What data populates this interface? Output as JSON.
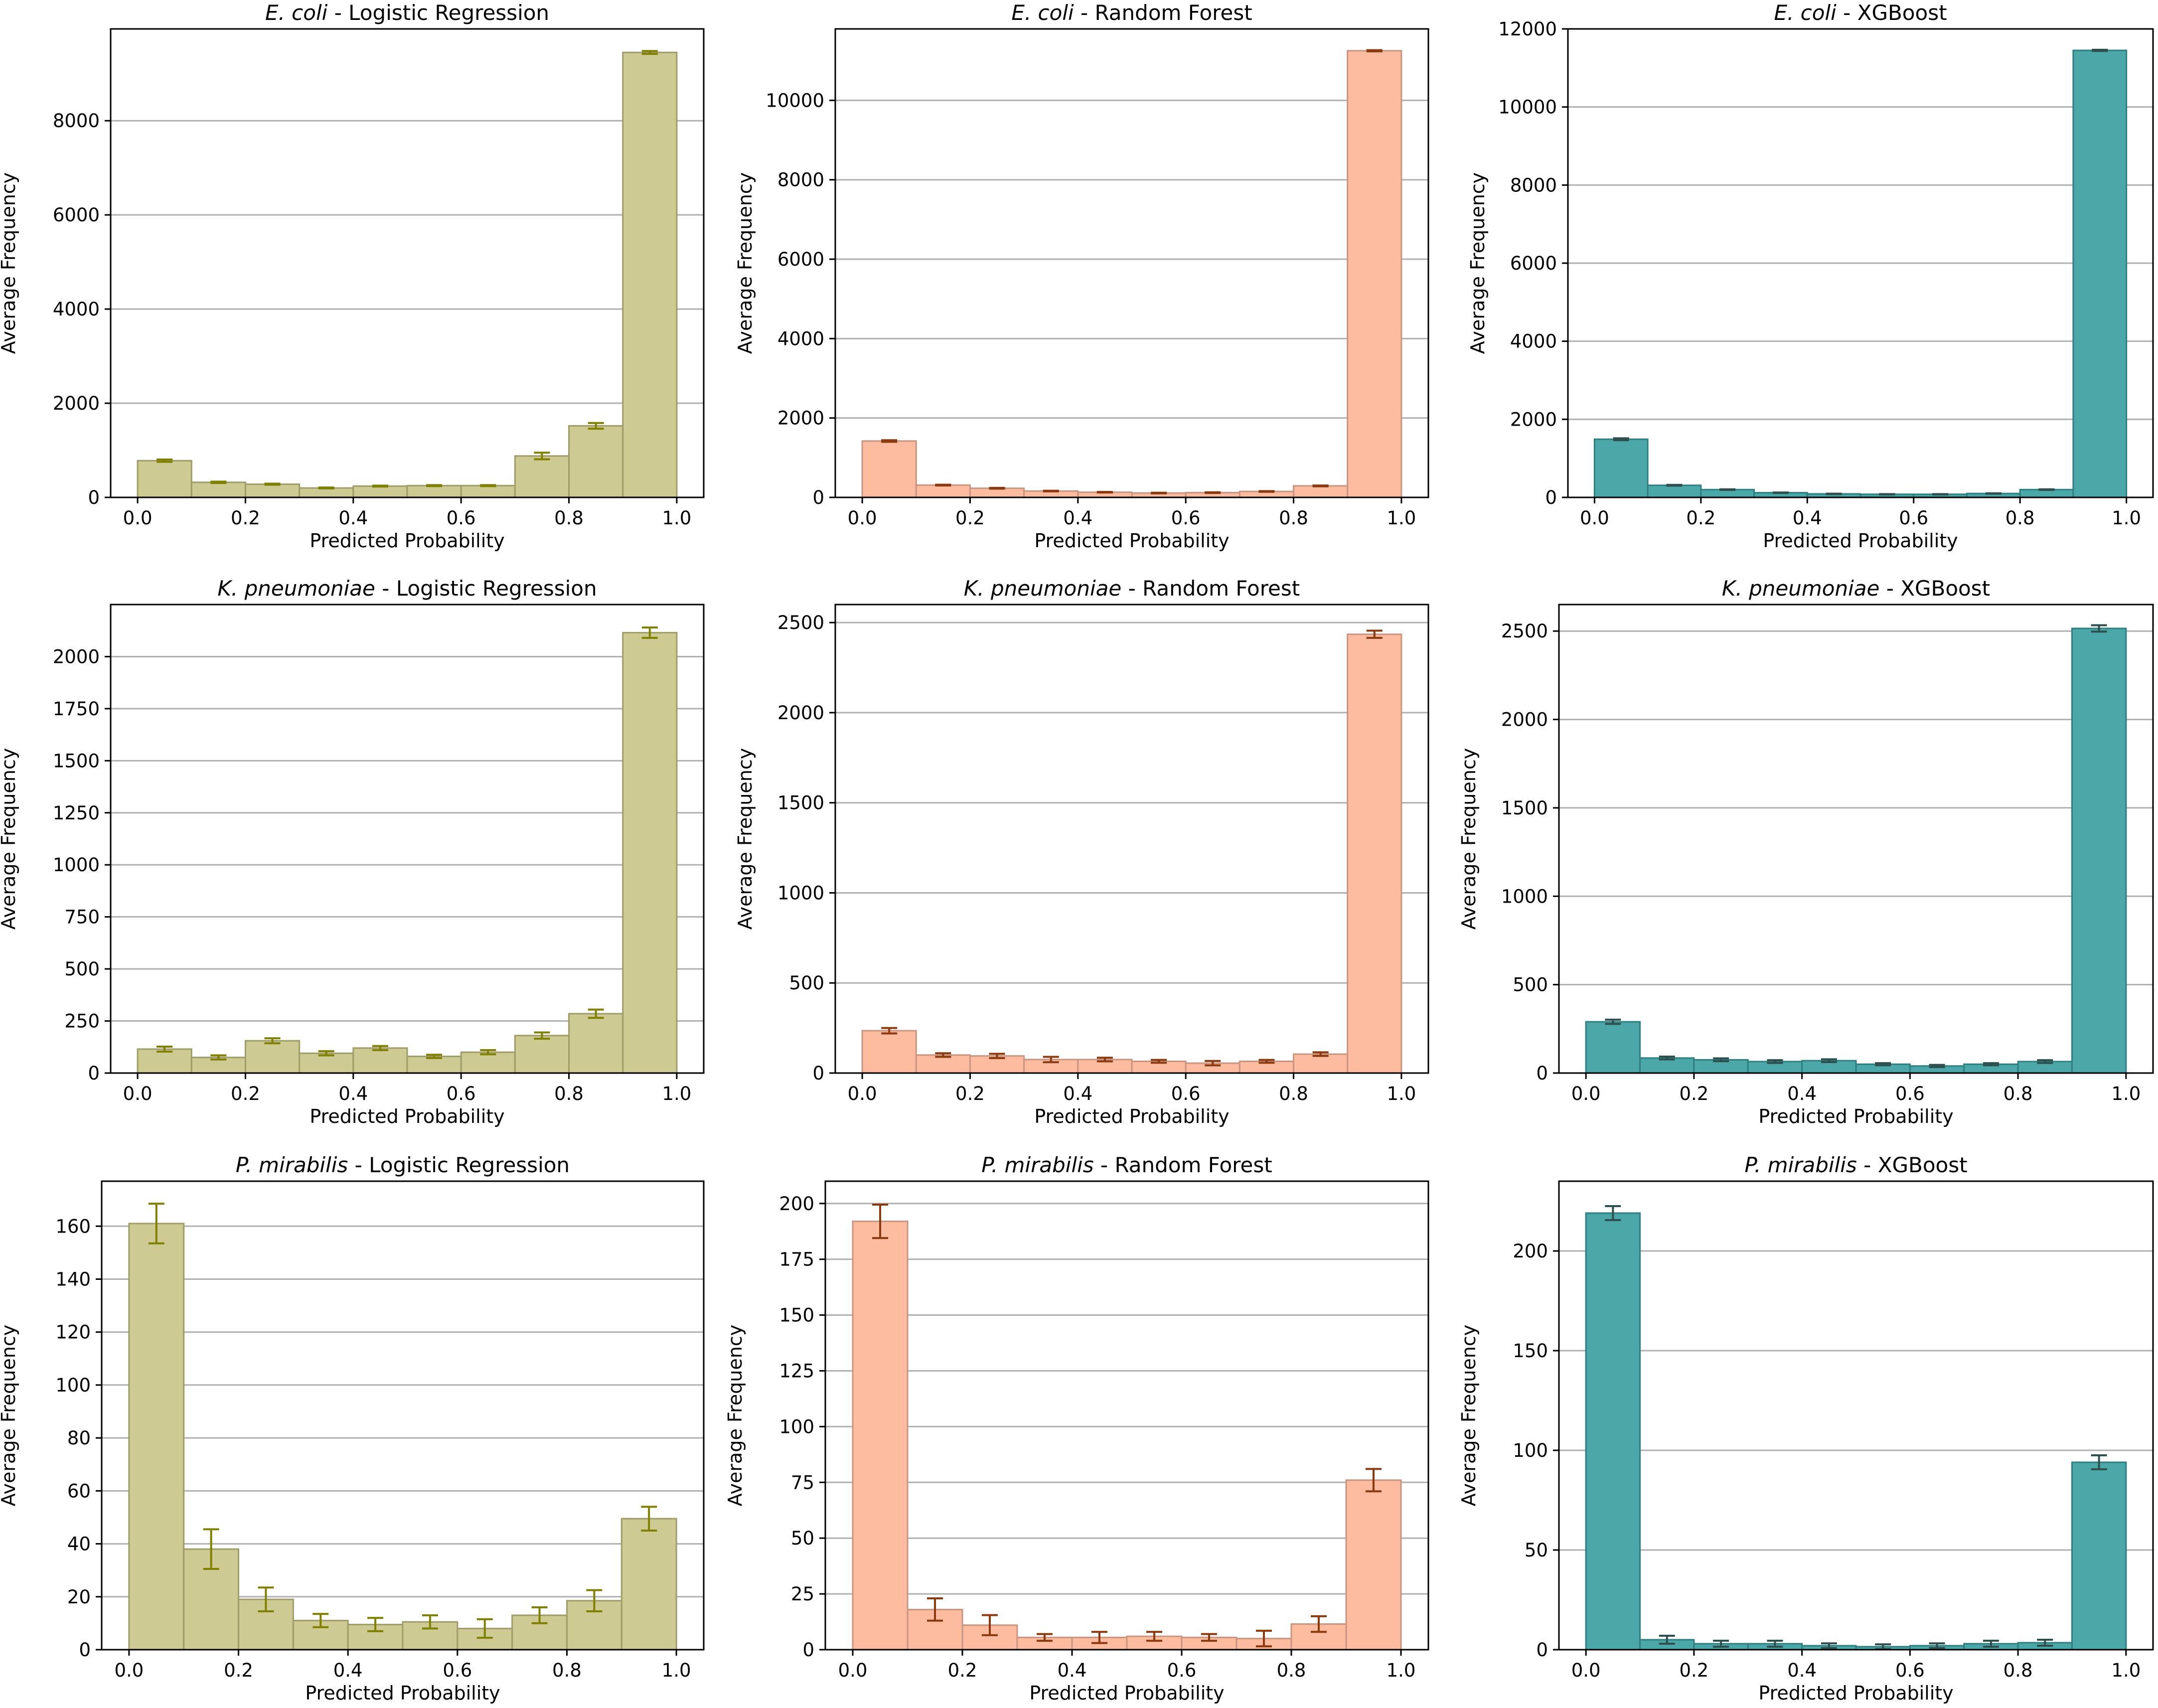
{
  "chart_data": [
    {
      "type": "bar",
      "title_organism": "E. coli",
      "title_model": "Logistic Regression",
      "title_sep": " - ",
      "xlabel": "Predicted Probability",
      "ylabel": "Average Frequency",
      "xlim": [
        -0.05,
        1.05
      ],
      "ylim": [
        0,
        9950
      ],
      "yticks": [
        0,
        2000,
        4000,
        6000,
        8000
      ],
      "xticks": [
        0.0,
        0.2,
        0.4,
        0.6,
        0.8,
        1.0
      ],
      "grid": "y",
      "bar_color": "#cdca93",
      "bar_edge": "#9f9c6a",
      "err_color": "#808000",
      "bin_edges": [
        0.0,
        0.1,
        0.2,
        0.3,
        0.4,
        0.5,
        0.6,
        0.7,
        0.8,
        0.9,
        1.0
      ],
      "values": [
        780,
        320,
        280,
        200,
        240,
        250,
        250,
        880,
        1520,
        9450
      ],
      "errors": [
        25,
        15,
        12,
        10,
        10,
        10,
        10,
        70,
        60,
        30
      ]
    },
    {
      "type": "bar",
      "title_organism": "E. coli",
      "title_model": "Random Forest",
      "title_sep": " - ",
      "xlabel": "Predicted Probability",
      "ylabel": "Average Frequency",
      "xlim": [
        -0.05,
        1.05
      ],
      "ylim": [
        0,
        11800
      ],
      "yticks": [
        0,
        2000,
        4000,
        6000,
        8000,
        10000
      ],
      "xticks": [
        0.0,
        0.2,
        0.4,
        0.6,
        0.8,
        1.0
      ],
      "grid": "y",
      "bar_color": "#fdbba0",
      "bar_edge": "#c99580",
      "err_color": "#8b3a10",
      "bin_edges": [
        0.0,
        0.1,
        0.2,
        0.3,
        0.4,
        0.5,
        0.6,
        0.7,
        0.8,
        0.9,
        1.0
      ],
      "values": [
        1420,
        310,
        230,
        160,
        130,
        110,
        120,
        150,
        290,
        11250
      ],
      "errors": [
        20,
        10,
        10,
        8,
        8,
        8,
        8,
        8,
        10,
        15
      ]
    },
    {
      "type": "bar",
      "title_organism": "E. coli",
      "title_model": "XGBoost",
      "title_sep": " - ",
      "xlabel": "Predicted Probability",
      "ylabel": "Average Frequency",
      "xlim": [
        -0.05,
        1.05
      ],
      "ylim": [
        0,
        12000
      ],
      "yticks": [
        0,
        2000,
        4000,
        6000,
        8000,
        10000,
        12000
      ],
      "xticks": [
        0.0,
        0.2,
        0.4,
        0.6,
        0.8,
        1.0
      ],
      "grid": "y",
      "bar_color": "#4ca7a8",
      "bar_edge": "#2f7f80",
      "err_color": "#2f4f4f",
      "bin_edges": [
        0.0,
        0.1,
        0.2,
        0.3,
        0.4,
        0.5,
        0.6,
        0.7,
        0.8,
        0.9,
        1.0
      ],
      "values": [
        1490,
        310,
        200,
        120,
        90,
        80,
        80,
        100,
        200,
        11450
      ],
      "errors": [
        25,
        10,
        8,
        6,
        5,
        5,
        5,
        6,
        8,
        15
      ]
    },
    {
      "type": "bar",
      "title_organism": "K. pneumoniae",
      "title_model": "Logistic Regression",
      "title_sep": " - ",
      "xlabel": "Predicted Probability",
      "ylabel": "Average Frequency",
      "xlim": [
        -0.05,
        1.05
      ],
      "ylim": [
        0,
        2250
      ],
      "yticks": [
        0,
        250,
        500,
        750,
        1000,
        1250,
        1500,
        1750,
        2000
      ],
      "xticks": [
        0.0,
        0.2,
        0.4,
        0.6,
        0.8,
        1.0
      ],
      "grid": "y",
      "bar_color": "#cdca93",
      "bar_edge": "#9f9c6a",
      "err_color": "#808000",
      "bin_edges": [
        0.0,
        0.1,
        0.2,
        0.3,
        0.4,
        0.5,
        0.6,
        0.7,
        0.8,
        0.9,
        1.0
      ],
      "values": [
        115,
        75,
        155,
        95,
        120,
        80,
        100,
        180,
        285,
        2115
      ],
      "errors": [
        12,
        10,
        12,
        10,
        10,
        8,
        10,
        15,
        20,
        25
      ]
    },
    {
      "type": "bar",
      "title_organism": "K. pneumoniae",
      "title_model": "Random Forest",
      "title_sep": " - ",
      "xlabel": "Predicted Probability",
      "ylabel": "Average Frequency",
      "xlim": [
        -0.05,
        1.05
      ],
      "ylim": [
        0,
        2600
      ],
      "yticks": [
        0,
        500,
        1000,
        1500,
        2000,
        2500
      ],
      "xticks": [
        0.0,
        0.2,
        0.4,
        0.6,
        0.8,
        1.0
      ],
      "grid": "y",
      "bar_color": "#fdbba0",
      "bar_edge": "#c99580",
      "err_color": "#8b3a10",
      "bin_edges": [
        0.0,
        0.1,
        0.2,
        0.3,
        0.4,
        0.5,
        0.6,
        0.7,
        0.8,
        0.9,
        1.0
      ],
      "values": [
        235,
        100,
        95,
        75,
        75,
        65,
        55,
        65,
        105,
        2435
      ],
      "errors": [
        15,
        10,
        12,
        15,
        10,
        8,
        12,
        8,
        10,
        20
      ]
    },
    {
      "type": "bar",
      "title_organism": "K. pneumoniae",
      "title_model": "XGBoost",
      "title_sep": " - ",
      "xlabel": "Predicted Probability",
      "ylabel": "Average Frequency",
      "xlim": [
        -0.05,
        1.05
      ],
      "ylim": [
        0,
        2650
      ],
      "yticks": [
        0,
        500,
        1000,
        1500,
        2000,
        2500
      ],
      "xticks": [
        0.0,
        0.2,
        0.4,
        0.6,
        0.8,
        1.0
      ],
      "grid": "y",
      "bar_color": "#4ca7a8",
      "bar_edge": "#2f7f80",
      "err_color": "#2f4f4f",
      "bin_edges": [
        0.0,
        0.1,
        0.2,
        0.3,
        0.4,
        0.5,
        0.6,
        0.7,
        0.8,
        0.9,
        1.0
      ],
      "values": [
        290,
        85,
        75,
        65,
        70,
        50,
        40,
        50,
        65,
        2515
      ],
      "errors": [
        12,
        8,
        8,
        8,
        8,
        6,
        6,
        6,
        8,
        18
      ]
    },
    {
      "type": "bar",
      "title_organism": "P. mirabilis",
      "title_model": "Logistic Regression",
      "title_sep": " - ",
      "xlabel": "Predicted Probability",
      "ylabel": "Average Frequency",
      "xlim": [
        -0.05,
        1.05
      ],
      "ylim": [
        0,
        177
      ],
      "yticks": [
        0,
        20,
        40,
        60,
        80,
        100,
        120,
        140,
        160
      ],
      "xticks": [
        0.0,
        0.2,
        0.4,
        0.6,
        0.8,
        1.0
      ],
      "grid": "y",
      "bar_color": "#cdca93",
      "bar_edge": "#9f9c6a",
      "err_color": "#808000",
      "bin_edges": [
        0.0,
        0.1,
        0.2,
        0.3,
        0.4,
        0.5,
        0.6,
        0.7,
        0.8,
        0.9,
        1.0
      ],
      "values": [
        161,
        38,
        19,
        11,
        9.5,
        10.5,
        8,
        13,
        18.5,
        49.5
      ],
      "errors": [
        7.5,
        7.5,
        4.5,
        2.5,
        2.5,
        2.5,
        3.5,
        3,
        4,
        4.5
      ]
    },
    {
      "type": "bar",
      "title_organism": "P. mirabilis",
      "title_model": "Random Forest",
      "title_sep": " - ",
      "xlabel": "Predicted Probability",
      "ylabel": "Average Frequency",
      "xlim": [
        -0.05,
        1.05
      ],
      "ylim": [
        0,
        210
      ],
      "yticks": [
        0,
        25,
        50,
        75,
        100,
        125,
        150,
        175,
        200
      ],
      "xticks": [
        0.0,
        0.2,
        0.4,
        0.6,
        0.8,
        1.0
      ],
      "grid": "y",
      "bar_color": "#fdbba0",
      "bar_edge": "#c99580",
      "err_color": "#8b3a10",
      "bin_edges": [
        0.0,
        0.1,
        0.2,
        0.3,
        0.4,
        0.5,
        0.6,
        0.7,
        0.8,
        0.9,
        1.0
      ],
      "values": [
        192,
        18,
        11,
        5.5,
        5.5,
        6,
        5.5,
        5,
        11.5,
        76
      ],
      "errors": [
        7.5,
        5,
        4.5,
        1.5,
        2.5,
        2,
        1.5,
        3.5,
        3.5,
        5
      ]
    },
    {
      "type": "bar",
      "title_organism": "P. mirabilis",
      "title_model": "XGBoost",
      "title_sep": " - ",
      "xlabel": "Predicted Probability",
      "ylabel": "Average Frequency",
      "xlim": [
        -0.05,
        1.05
      ],
      "ylim": [
        0,
        235
      ],
      "yticks": [
        0,
        50,
        100,
        150,
        200
      ],
      "xticks": [
        0.0,
        0.2,
        0.4,
        0.6,
        0.8,
        1.0
      ],
      "grid": "y",
      "bar_color": "#4ca7a8",
      "bar_edge": "#2f7f80",
      "err_color": "#2f4f4f",
      "bin_edges": [
        0.0,
        0.1,
        0.2,
        0.3,
        0.4,
        0.5,
        0.6,
        0.7,
        0.8,
        0.9,
        1.0
      ],
      "values": [
        219,
        5,
        3,
        3,
        2,
        1.5,
        2,
        3,
        3.5,
        94
      ],
      "errors": [
        3.5,
        2,
        1.5,
        1.5,
        1.2,
        1.2,
        1.2,
        1.5,
        1.5,
        3.5
      ]
    }
  ]
}
